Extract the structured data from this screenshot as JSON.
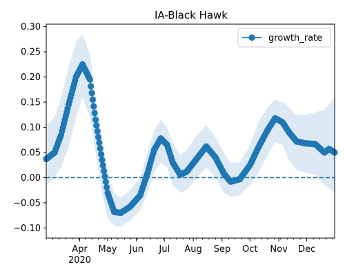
{
  "chart_data": {
    "type": "line",
    "title": "IA-Black Hawk",
    "xlabel": "",
    "ylabel": "",
    "x_axis": {
      "type": "date",
      "range": [
        "2020-02-25",
        "2020-12-31"
      ],
      "major_ticks": [
        {
          "date": "2020-04-01",
          "label": "Apr",
          "sublabel": "2020"
        },
        {
          "date": "2020-05-01",
          "label": "May",
          "sublabel": ""
        },
        {
          "date": "2020-06-01",
          "label": "Jun",
          "sublabel": ""
        },
        {
          "date": "2020-07-01",
          "label": "Jul",
          "sublabel": ""
        },
        {
          "date": "2020-08-01",
          "label": "Aug",
          "sublabel": ""
        },
        {
          "date": "2020-09-01",
          "label": "Sep",
          "sublabel": ""
        },
        {
          "date": "2020-10-01",
          "label": "Oct",
          "sublabel": ""
        },
        {
          "date": "2020-11-01",
          "label": "Nov",
          "sublabel": ""
        },
        {
          "date": "2020-12-01",
          "label": "Dec",
          "sublabel": ""
        }
      ]
    },
    "ylim": [
      -0.12,
      0.305
    ],
    "y_ticks": [
      -0.1,
      -0.05,
      0.0,
      0.05,
      0.1,
      0.15,
      0.2,
      0.25,
      0.3
    ],
    "y_tick_labels": [
      "−0.10",
      "−0.05",
      "0.00",
      "0.05",
      "0.10",
      "0.15",
      "0.20",
      "0.25",
      "0.30"
    ],
    "reference_line": {
      "y": 0.0,
      "style": "dashed",
      "color": "#1f77b4"
    },
    "legend": {
      "position": "top-right",
      "entries": [
        "growth_rate"
      ]
    },
    "grid": false,
    "series": [
      {
        "name": "growth_rate",
        "color": "#1f77b4",
        "marker": "circle",
        "band_color": "#dce9f5",
        "anchors": [
          {
            "date": "2020-02-25",
            "y": 0.037,
            "lo": -0.015,
            "hi": 0.105
          },
          {
            "date": "2020-03-05",
            "y": 0.05,
            "lo": 0.0,
            "hi": 0.12
          },
          {
            "date": "2020-03-12",
            "y": 0.085,
            "lo": 0.02,
            "hi": 0.16
          },
          {
            "date": "2020-03-20",
            "y": 0.145,
            "lo": 0.06,
            "hi": 0.22
          },
          {
            "date": "2020-03-28",
            "y": 0.2,
            "lo": 0.12,
            "hi": 0.27
          },
          {
            "date": "2020-04-04",
            "y": 0.225,
            "lo": 0.16,
            "hi": 0.285
          },
          {
            "date": "2020-04-12",
            "y": 0.195,
            "lo": 0.12,
            "hi": 0.245
          },
          {
            "date": "2020-04-18",
            "y": 0.115,
            "lo": 0.05,
            "hi": 0.16
          },
          {
            "date": "2020-04-25",
            "y": 0.035,
            "lo": -0.03,
            "hi": 0.08
          },
          {
            "date": "2020-05-01",
            "y": -0.03,
            "lo": -0.08,
            "hi": 0.01
          },
          {
            "date": "2020-05-08",
            "y": -0.068,
            "lo": -0.095,
            "hi": -0.03
          },
          {
            "date": "2020-05-15",
            "y": -0.07,
            "lo": -0.098,
            "hi": -0.04
          },
          {
            "date": "2020-05-25",
            "y": -0.058,
            "lo": -0.085,
            "hi": -0.025
          },
          {
            "date": "2020-06-05",
            "y": -0.035,
            "lo": -0.065,
            "hi": 0.0
          },
          {
            "date": "2020-06-13",
            "y": 0.01,
            "lo": -0.03,
            "hi": 0.05
          },
          {
            "date": "2020-06-20",
            "y": 0.055,
            "lo": 0.01,
            "hi": 0.095
          },
          {
            "date": "2020-06-27",
            "y": 0.078,
            "lo": 0.03,
            "hi": 0.115
          },
          {
            "date": "2020-07-04",
            "y": 0.065,
            "lo": 0.02,
            "hi": 0.1
          },
          {
            "date": "2020-07-10",
            "y": 0.03,
            "lo": -0.015,
            "hi": 0.07
          },
          {
            "date": "2020-07-18",
            "y": 0.006,
            "lo": -0.03,
            "hi": 0.045
          },
          {
            "date": "2020-07-25",
            "y": 0.012,
            "lo": -0.025,
            "hi": 0.055
          },
          {
            "date": "2020-08-05",
            "y": 0.038,
            "lo": 0.0,
            "hi": 0.085
          },
          {
            "date": "2020-08-15",
            "y": 0.062,
            "lo": 0.02,
            "hi": 0.105
          },
          {
            "date": "2020-08-25",
            "y": 0.04,
            "lo": 0.0,
            "hi": 0.08
          },
          {
            "date": "2020-09-03",
            "y": 0.008,
            "lo": -0.03,
            "hi": 0.05
          },
          {
            "date": "2020-09-10",
            "y": -0.008,
            "lo": -0.038,
            "hi": 0.03
          },
          {
            "date": "2020-09-20",
            "y": -0.003,
            "lo": -0.035,
            "hi": 0.03
          },
          {
            "date": "2020-10-01",
            "y": 0.025,
            "lo": -0.015,
            "hi": 0.065
          },
          {
            "date": "2020-10-10",
            "y": 0.06,
            "lo": 0.01,
            "hi": 0.11
          },
          {
            "date": "2020-10-20",
            "y": 0.095,
            "lo": 0.045,
            "hi": 0.14
          },
          {
            "date": "2020-10-28",
            "y": 0.118,
            "lo": 0.07,
            "hi": 0.155
          },
          {
            "date": "2020-11-05",
            "y": 0.11,
            "lo": 0.065,
            "hi": 0.15
          },
          {
            "date": "2020-11-12",
            "y": 0.09,
            "lo": 0.035,
            "hi": 0.14
          },
          {
            "date": "2020-11-20",
            "y": 0.072,
            "lo": 0.015,
            "hi": 0.125
          },
          {
            "date": "2020-11-30",
            "y": 0.068,
            "lo": 0.01,
            "hi": 0.125
          },
          {
            "date": "2020-12-10",
            "y": 0.067,
            "lo": 0.005,
            "hi": 0.13
          },
          {
            "date": "2020-12-20",
            "y": 0.05,
            "lo": -0.015,
            "hi": 0.135
          },
          {
            "date": "2020-12-25",
            "y": 0.057,
            "lo": -0.02,
            "hi": 0.145
          },
          {
            "date": "2020-12-31",
            "y": 0.05,
            "lo": -0.03,
            "hi": 0.16
          }
        ]
      }
    ]
  }
}
